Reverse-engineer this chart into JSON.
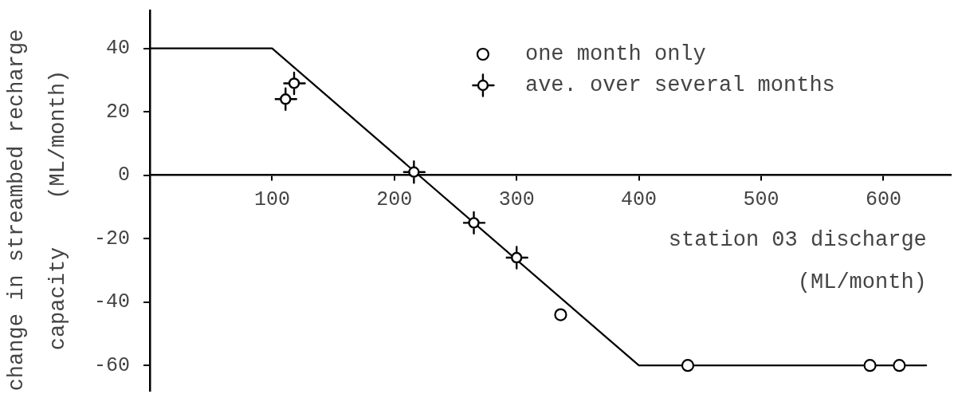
{
  "chart_data": {
    "type": "scatter",
    "xlabel": "station 03 discharge (ML/month)",
    "ylabel": "change in streambed recharge capacity (ML/month)",
    "xlim": [
      0,
      655
    ],
    "xticks": [
      100,
      200,
      300,
      400,
      500,
      600
    ],
    "ylim": [
      -68,
      52
    ],
    "yticks": [
      -60,
      -40,
      -20,
      0,
      20,
      40
    ],
    "grid": false,
    "legend": "top right",
    "series": [
      {
        "name": "one month only",
        "type": "scatter",
        "marker": "circle",
        "color": "#000000",
        "x": [
          336,
          440,
          589,
          613
        ],
        "values": [
          -44,
          -60,
          -60,
          -60
        ]
      },
      {
        "name": "ave. over several months",
        "type": "scatter",
        "marker": "cross",
        "color": "#000000",
        "x": [
          111,
          118,
          216,
          265,
          300
        ],
        "values": [
          24,
          29,
          1,
          -15,
          -26
        ]
      },
      {
        "type": "line",
        "marker": "none",
        "color": "#000000",
        "x": [
          0,
          100,
          400,
          635
        ],
        "values": [
          40,
          40,
          -60,
          -60
        ]
      }
    ]
  }
}
